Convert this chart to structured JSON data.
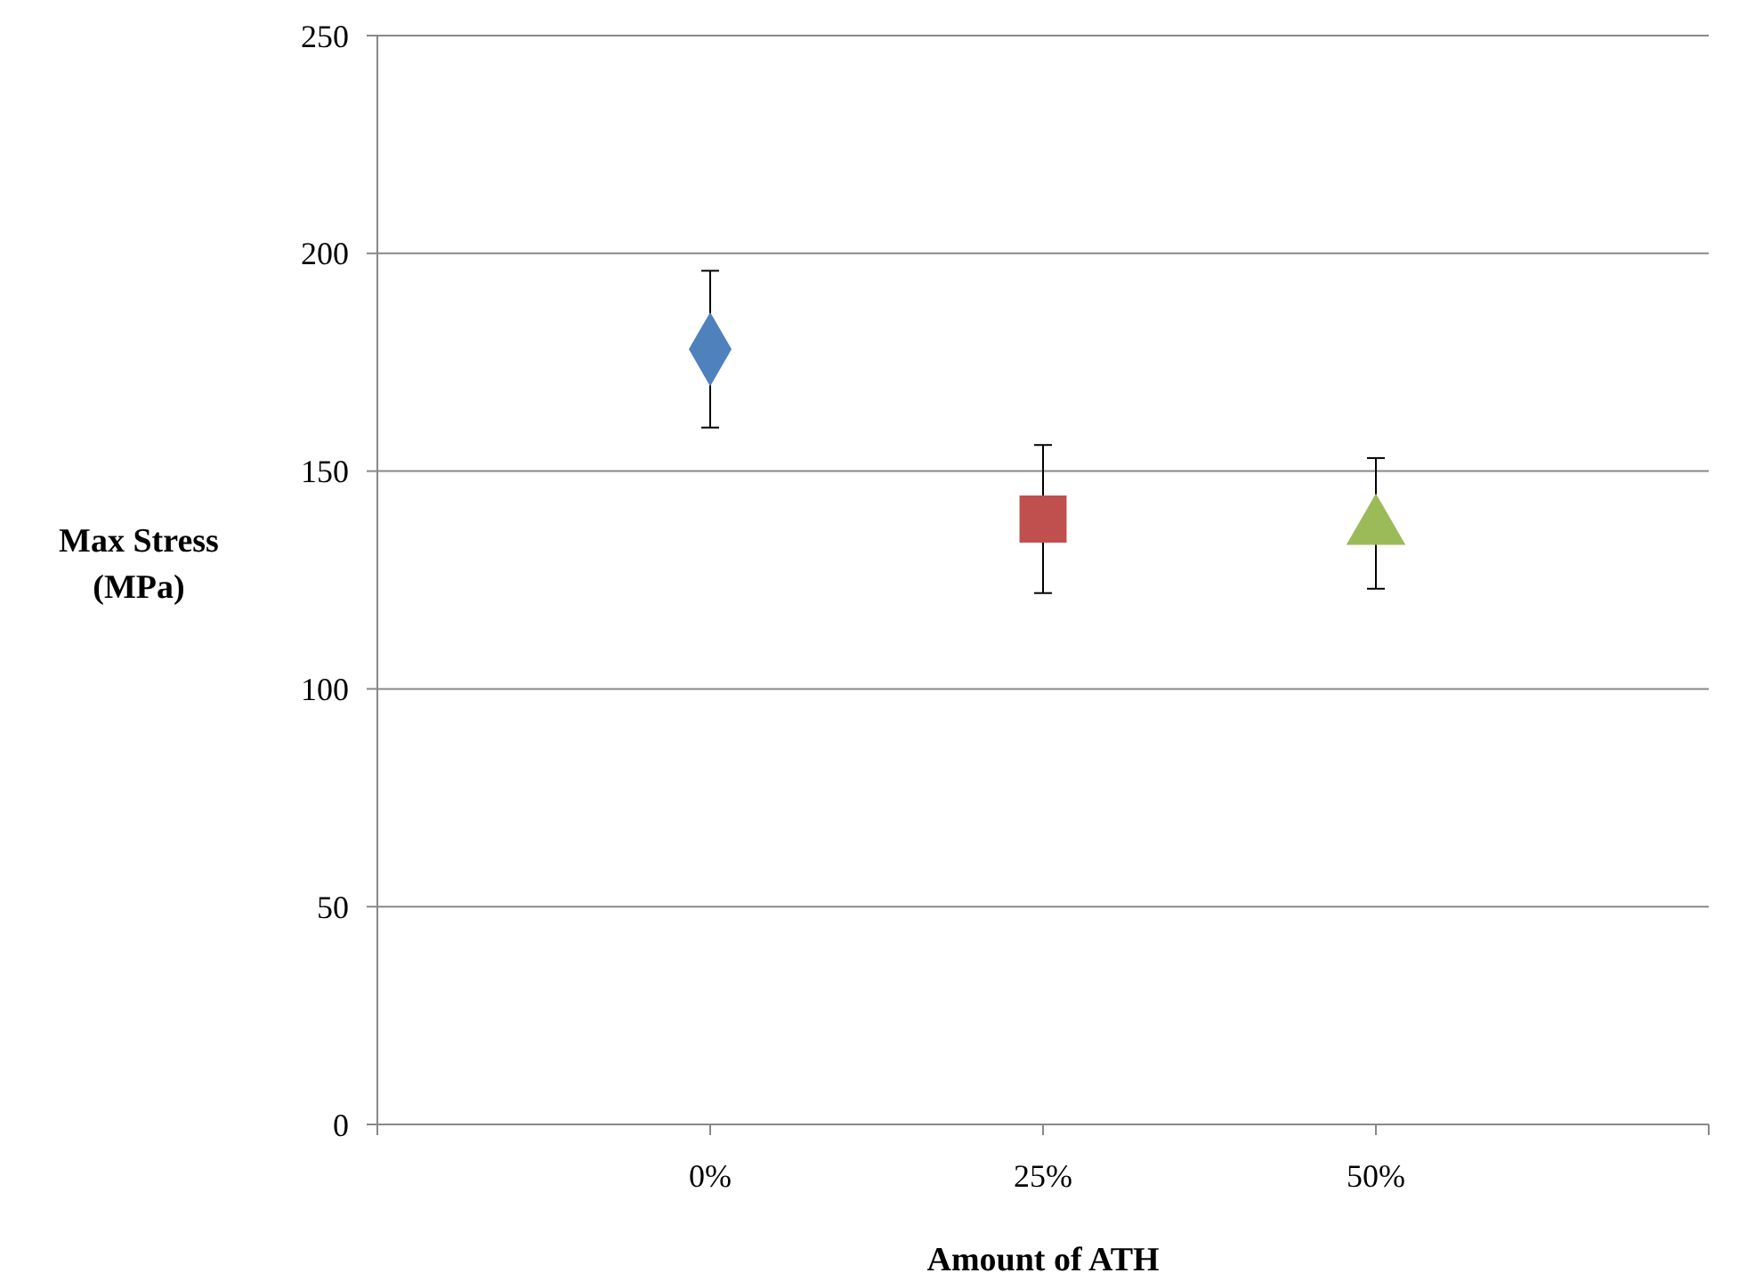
{
  "chart_data": {
    "type": "scatter",
    "xlabel": "Amount of ATH",
    "ylabel": "Max Stress\n(MPa)",
    "xlim": [
      -25,
      75
    ],
    "xticks": [
      {
        "value": -25,
        "label": null
      },
      {
        "value": 0,
        "label": "0%"
      },
      {
        "value": 25,
        "label": "25%"
      },
      {
        "value": 50,
        "label": "50%"
      },
      {
        "value": 75,
        "label": null
      }
    ],
    "ylim": [
      0,
      250
    ],
    "yticks": [
      0,
      50,
      100,
      150,
      200,
      250
    ],
    "grid": "y",
    "series": [
      {
        "color": "#4f81bd",
        "marker": "diamond",
        "x": [
          0
        ],
        "values": [
          178
        ],
        "errors": [
          [
            160,
            196
          ]
        ]
      },
      {
        "color": "#c0504d",
        "marker": "square",
        "x": [
          25
        ],
        "values": [
          139
        ],
        "errors": [
          [
            122,
            156
          ]
        ]
      },
      {
        "color": "#9bbb59",
        "marker": "triangle",
        "x": [
          50
        ],
        "values": [
          137
        ],
        "errors": [
          [
            123,
            153
          ]
        ]
      }
    ]
  }
}
